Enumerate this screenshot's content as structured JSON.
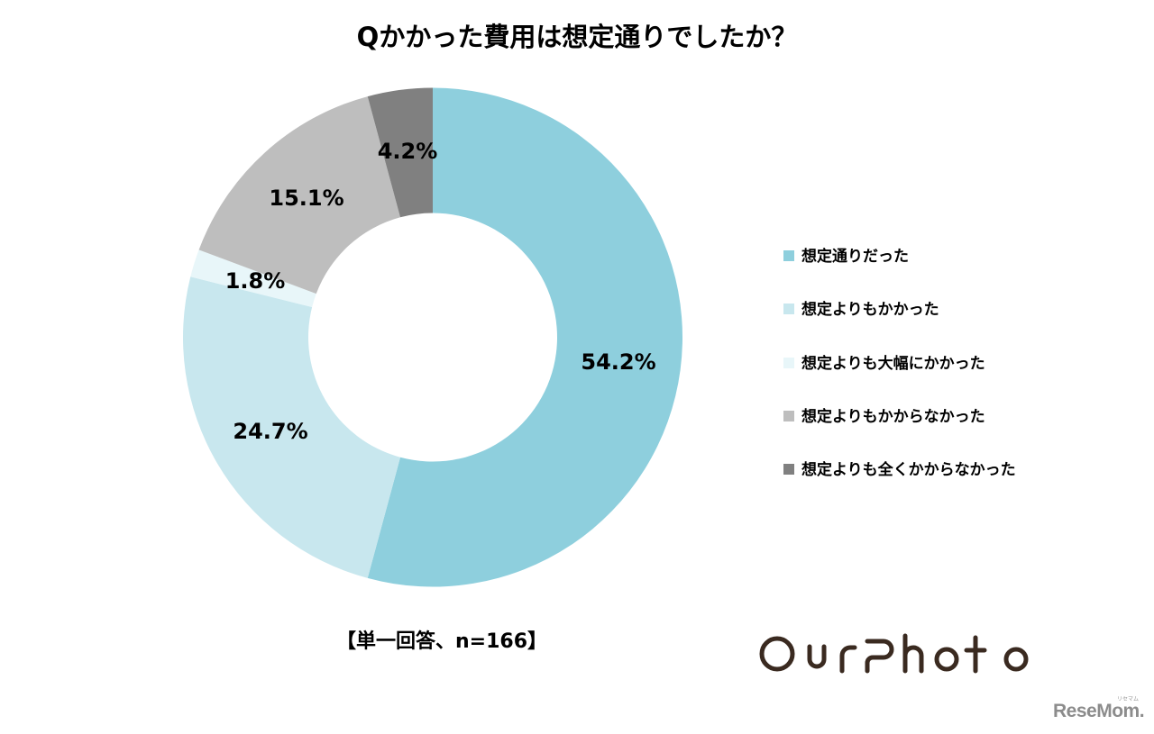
{
  "title": "Qかかった費用は想定通りでしたか？",
  "note": "【単一回答、n=166】",
  "logo": {
    "text": "OurPhoto",
    "color": "#3a2a20"
  },
  "credit": {
    "text": "ReseMom.",
    "ruby": "リセマム",
    "color": "#8c8c8c"
  },
  "legend": [
    {
      "label": "想定通りだった",
      "color": "#8ecfdd"
    },
    {
      "label": "想定よりもかかった",
      "color": "#c8e7ee"
    },
    {
      "label": "想定よりも大幅にかかった",
      "color": "#e8f6f9"
    },
    {
      "label": "想定よりもかからなかった",
      "color": "#bebebe"
    },
    {
      "label": "想定よりも全くかからなかった",
      "color": "#808080"
    }
  ],
  "labels": {
    "s0": "54.2%",
    "s1": "24.7%",
    "s2": "1.8%",
    "s3": "15.1%",
    "s4": "4.2%"
  },
  "chart_data": {
    "type": "pie",
    "subtype": "donut",
    "title": "Qかかった費用は想定通りでしたか？",
    "categories": [
      "想定通りだった",
      "想定よりもかかった",
      "想定よりも大幅にかかった",
      "想定よりもかからなかった",
      "想定よりも全くかからなかった"
    ],
    "values": [
      54.2,
      24.7,
      1.8,
      15.1,
      4.2
    ],
    "unit": "%",
    "colors": [
      "#8ecfdd",
      "#c8e7ee",
      "#e8f6f9",
      "#bebebe",
      "#808080"
    ],
    "start_angle": "12 o'clock, clockwise",
    "legend_position": "right",
    "annotation": "【単一回答、n=166】",
    "n": 166
  }
}
